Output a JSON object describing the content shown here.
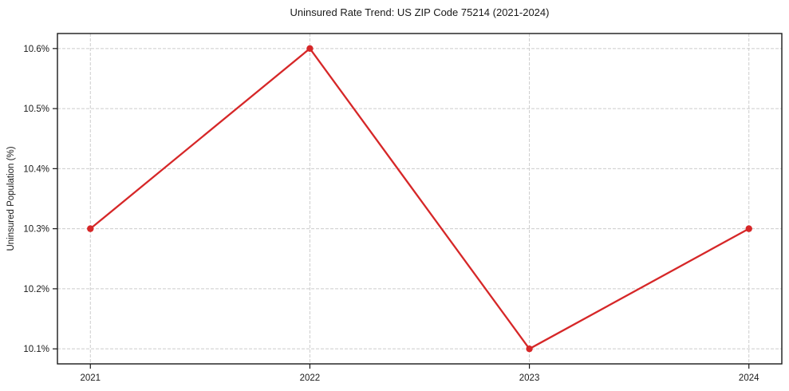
{
  "figure": {
    "background": "#ffffff"
  },
  "chart_data": {
    "type": "line",
    "title": "Uninsured Rate Trend: US ZIP Code 75214 (2021-2024)",
    "xlabel": "",
    "ylabel": "Uninsured Population (%)",
    "x": [
      2021,
      2022,
      2023,
      2024
    ],
    "values": [
      10.3,
      10.6,
      10.1,
      10.3
    ],
    "x_tick_labels": [
      "2021",
      "2022",
      "2023",
      "2024"
    ],
    "y_ticks": [
      10.1,
      10.2,
      10.3,
      10.4,
      10.5,
      10.6
    ],
    "y_tick_labels": [
      "10.1%",
      "10.2%",
      "10.3%",
      "10.4%",
      "10.5%",
      "10.6%"
    ],
    "xlim": [
      2020.85,
      2024.15
    ],
    "ylim": [
      10.075,
      10.625
    ],
    "grid": true,
    "legend_position": "none",
    "line_color": "#d62728",
    "marker": "circle",
    "grid_color": "#cccccc",
    "axis_color": "#1a1a1a",
    "tick_label_color": "#1a1a1a"
  }
}
